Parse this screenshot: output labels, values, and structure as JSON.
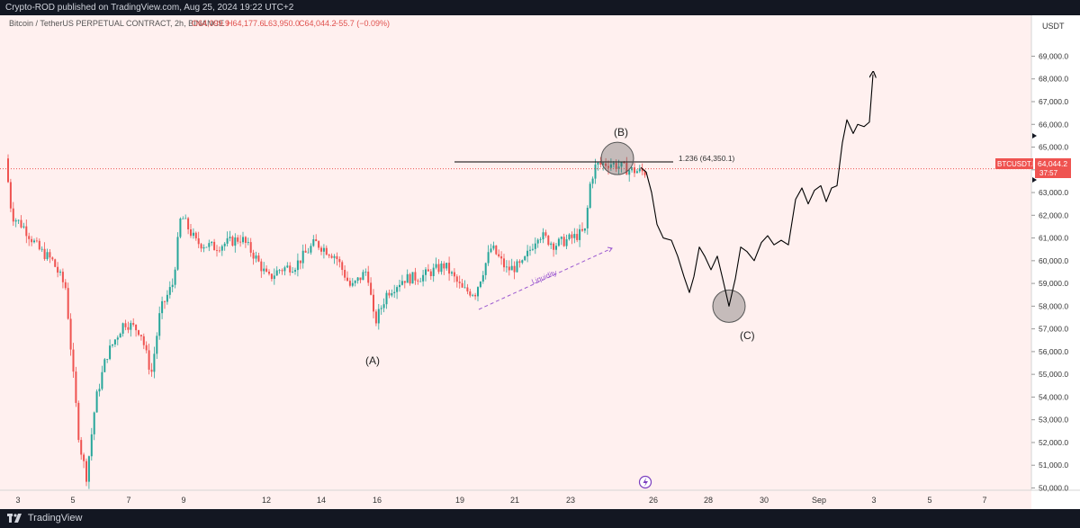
{
  "header": {
    "published_by": "Crypto-ROD published on TradingView.com, Aug 25, 2024 19:22 UTC+2"
  },
  "footer": {
    "brand": "TradingView"
  },
  "chart_data": {
    "type": "candlestick",
    "symbol_line": "Bitcoin / TetherUS PERPETUAL CONTRACT, 2h, BINANCE",
    "ohlc": {
      "open": "O64,099.9",
      "high": "H64,177.6",
      "low": "L63,950.0",
      "close": "C64,044.2",
      "change": "−55.7 (−0.09%)"
    },
    "currency_label": "USDT",
    "price_ticks": [
      "50,000.0",
      "51,000.0",
      "52,000.0",
      "53,000.0",
      "54,000.0",
      "55,000.0",
      "56,000.0",
      "57,000.0",
      "58,000.0",
      "59,000.0",
      "60,000.0",
      "61,000.0",
      "62,000.0",
      "63,000.0",
      "64,000.0",
      "65,000.0",
      "66,000.0",
      "67,000.0",
      "68,000.0",
      "69,000.0"
    ],
    "ylim": [
      49900,
      70800
    ],
    "x_ticks": [
      "3",
      "5",
      "7",
      "9",
      "12",
      "14",
      "16",
      "19",
      "21",
      "23",
      "26",
      "28",
      "30",
      "Sep",
      "3",
      "5",
      "7"
    ],
    "last_price": {
      "symbol": "BTCUSDT.P",
      "value": "64,044.2",
      "countdown": "37:57",
      "price": 64044.2
    },
    "fib_level": {
      "label": "1.236 (64,350.1)",
      "price": 64350.1
    },
    "annotations": {
      "wave_a": "(A)",
      "wave_b": "(B)",
      "wave_c": "(C)",
      "liquidity": "Liquidity"
    },
    "key_points": [
      {
        "label": "(A)",
        "date": "Aug 16",
        "price": 56000
      },
      {
        "label": "(B)",
        "date": "Aug 24",
        "price": 64900
      },
      {
        "label": "(C)",
        "date": "Aug 28",
        "price": 58000
      }
    ],
    "projection_end": {
      "date": "Sep 3",
      "price": 68200
    },
    "colors": {
      "up": "#26a69a",
      "down": "#ef5350",
      "background": "#fff0ef",
      "projection": "#000000",
      "liquidity": "#9b59d0"
    }
  }
}
